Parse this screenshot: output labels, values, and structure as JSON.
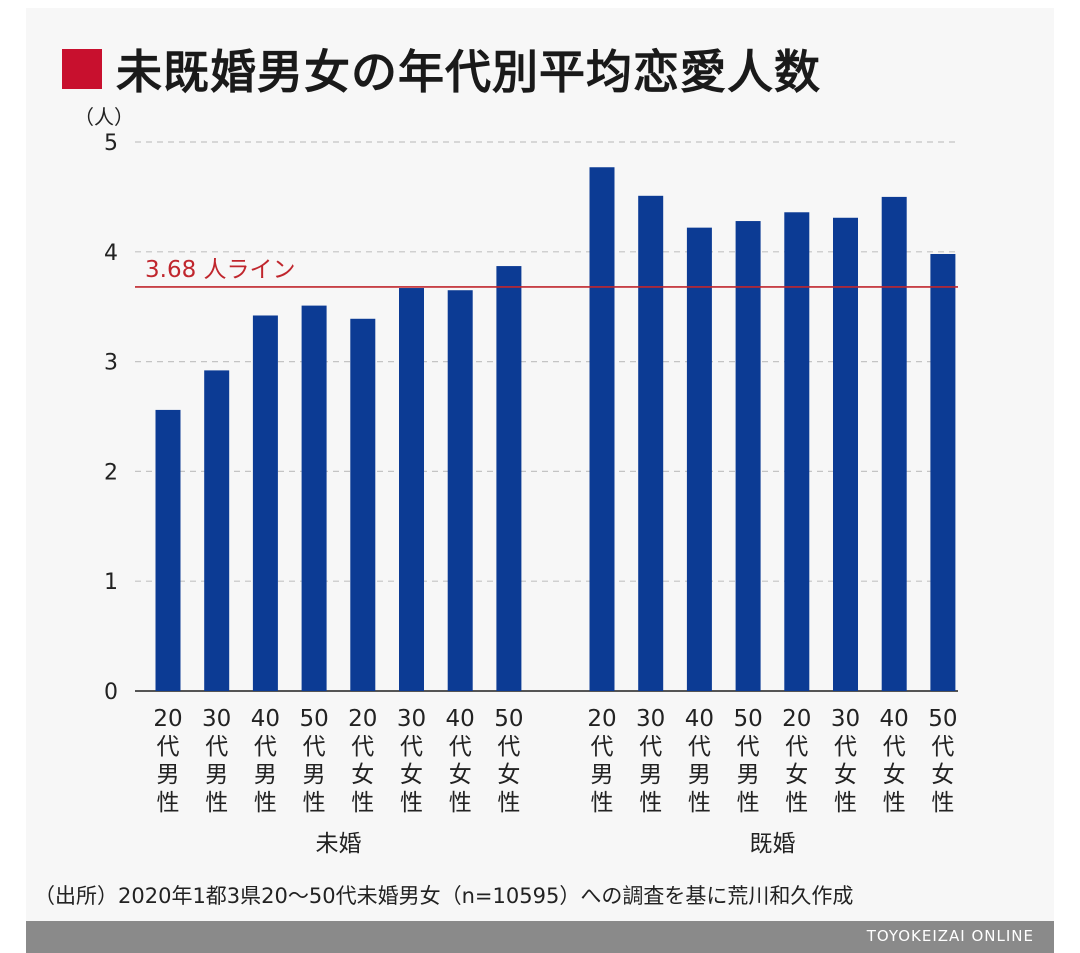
{
  "header": {
    "title": "未既婚男女の年代別平均恋愛人数"
  },
  "chart_data": {
    "type": "bar",
    "unit_label": "（人）",
    "ylim": [
      0,
      5
    ],
    "yticks": [
      0,
      1,
      2,
      3,
      4,
      5
    ],
    "grid": true,
    "categories": [
      "20代男性",
      "30代男性",
      "40代男性",
      "50代男性",
      "20代女性",
      "30代女性",
      "40代女性",
      "50代女性",
      "20代男性",
      "30代男性",
      "40代男性",
      "50代男性",
      "20代女性",
      "30代女性",
      "40代女性",
      "50代女性"
    ],
    "groups": [
      {
        "name": "未婚",
        "start": 0,
        "count": 8
      },
      {
        "name": "既婚",
        "start": 8,
        "count": 8
      }
    ],
    "series": [
      {
        "values": [
          2.56,
          2.92,
          3.42,
          3.51,
          3.39,
          3.67,
          3.65,
          3.87,
          4.77,
          4.51,
          4.22,
          4.28,
          4.36,
          4.31,
          4.5,
          3.98
        ],
        "color": "#0c3b94"
      }
    ],
    "reference_line": {
      "value": 3.68,
      "label": "3.68 人ライン",
      "color": "#c0262d"
    }
  },
  "source": "（出所）2020年1都3県20〜50代未婚男女（n=10595）への調査を基に荒川和久作成",
  "footer": {
    "brand": "TOYOKEIZAI ONLINE"
  }
}
